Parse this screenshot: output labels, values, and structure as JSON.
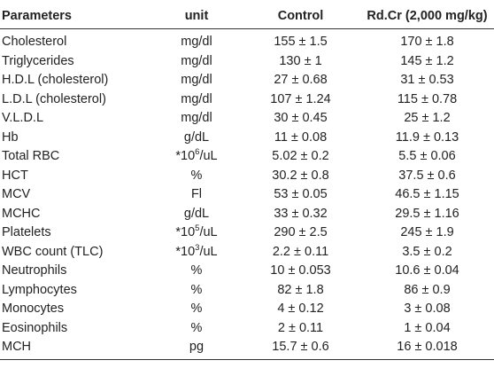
{
  "headers": {
    "parameters": "Parameters",
    "unit": "unit",
    "control": "Control",
    "rdcr": "Rd.Cr (2,000 mg/kg)"
  },
  "rows": [
    {
      "param": "Cholesterol",
      "unit": {
        "pre": "mg/dl",
        "sup": "",
        "post": ""
      },
      "control": "155 ± 1.5",
      "rdcr": "170 ± 1.8"
    },
    {
      "param": "Triglycerides",
      "unit": {
        "pre": "mg/dl",
        "sup": "",
        "post": ""
      },
      "control": "130 ± 1",
      "rdcr": "145 ± 1.2"
    },
    {
      "param": "H.D.L (cholesterol)",
      "unit": {
        "pre": "mg/dl",
        "sup": "",
        "post": ""
      },
      "control": "27 ± 0.68",
      "rdcr": "31 ± 0.53"
    },
    {
      "param": "L.D.L (cholesterol)",
      "unit": {
        "pre": "mg/dl",
        "sup": "",
        "post": ""
      },
      "control": "107 ± 1.24",
      "rdcr": "115 ± 0.78"
    },
    {
      "param": "V.L.D.L",
      "unit": {
        "pre": "mg/dl",
        "sup": "",
        "post": ""
      },
      "control": "30 ± 0.45",
      "rdcr": "25 ± 1.2"
    },
    {
      "param": "Hb",
      "unit": {
        "pre": "g/dL",
        "sup": "",
        "post": ""
      },
      "control": "11 ± 0.08",
      "rdcr": "11.9 ± 0.13"
    },
    {
      "param": "Total RBC",
      "unit": {
        "pre": "*10",
        "sup": "6",
        "post": "/uL"
      },
      "control": "5.02 ± 0.2",
      "rdcr": "5.5 ± 0.06"
    },
    {
      "param": "HCT",
      "unit": {
        "pre": "%",
        "sup": "",
        "post": ""
      },
      "control": "30.2 ± 0.8",
      "rdcr": "37.5 ± 0.6"
    },
    {
      "param": "MCV",
      "unit": {
        "pre": "Fl",
        "sup": "",
        "post": ""
      },
      "control": "53 ± 0.05",
      "rdcr": "46.5 ± 1.15"
    },
    {
      "param": "MCHC",
      "unit": {
        "pre": "g/dL",
        "sup": "",
        "post": ""
      },
      "control": "33 ± 0.32",
      "rdcr": "29.5 ± 1.16"
    },
    {
      "param": "Platelets",
      "unit": {
        "pre": "*10",
        "sup": "5",
        "post": "/uL"
      },
      "control": "290 ± 2.5",
      "rdcr": "245 ± 1.9"
    },
    {
      "param": "WBC count (TLC)",
      "unit": {
        "pre": "*10",
        "sup": "3",
        "post": "/uL"
      },
      "control": "2.2 ± 0.11",
      "rdcr": "3.5 ± 0.2"
    },
    {
      "param": "Neutrophils",
      "unit": {
        "pre": "%",
        "sup": "",
        "post": ""
      },
      "control": "10 ± 0.053",
      "rdcr": "10.6 ± 0.04"
    },
    {
      "param": "Lymphocytes",
      "unit": {
        "pre": "%",
        "sup": "",
        "post": ""
      },
      "control": "82 ± 1.8",
      "rdcr": "86 ± 0.9"
    },
    {
      "param": "Monocytes",
      "unit": {
        "pre": "%",
        "sup": "",
        "post": ""
      },
      "control": "4 ± 0.12",
      "rdcr": "3 ± 0.08"
    },
    {
      "param": "Eosinophils",
      "unit": {
        "pre": "%",
        "sup": "",
        "post": ""
      },
      "control": "2 ± 0.11",
      "rdcr": "1 ± 0.04"
    },
    {
      "param": "MCH",
      "unit": {
        "pre": "pg",
        "sup": "",
        "post": ""
      },
      "control": "15.7 ± 0.6",
      "rdcr": "16 ± 0.018"
    }
  ]
}
